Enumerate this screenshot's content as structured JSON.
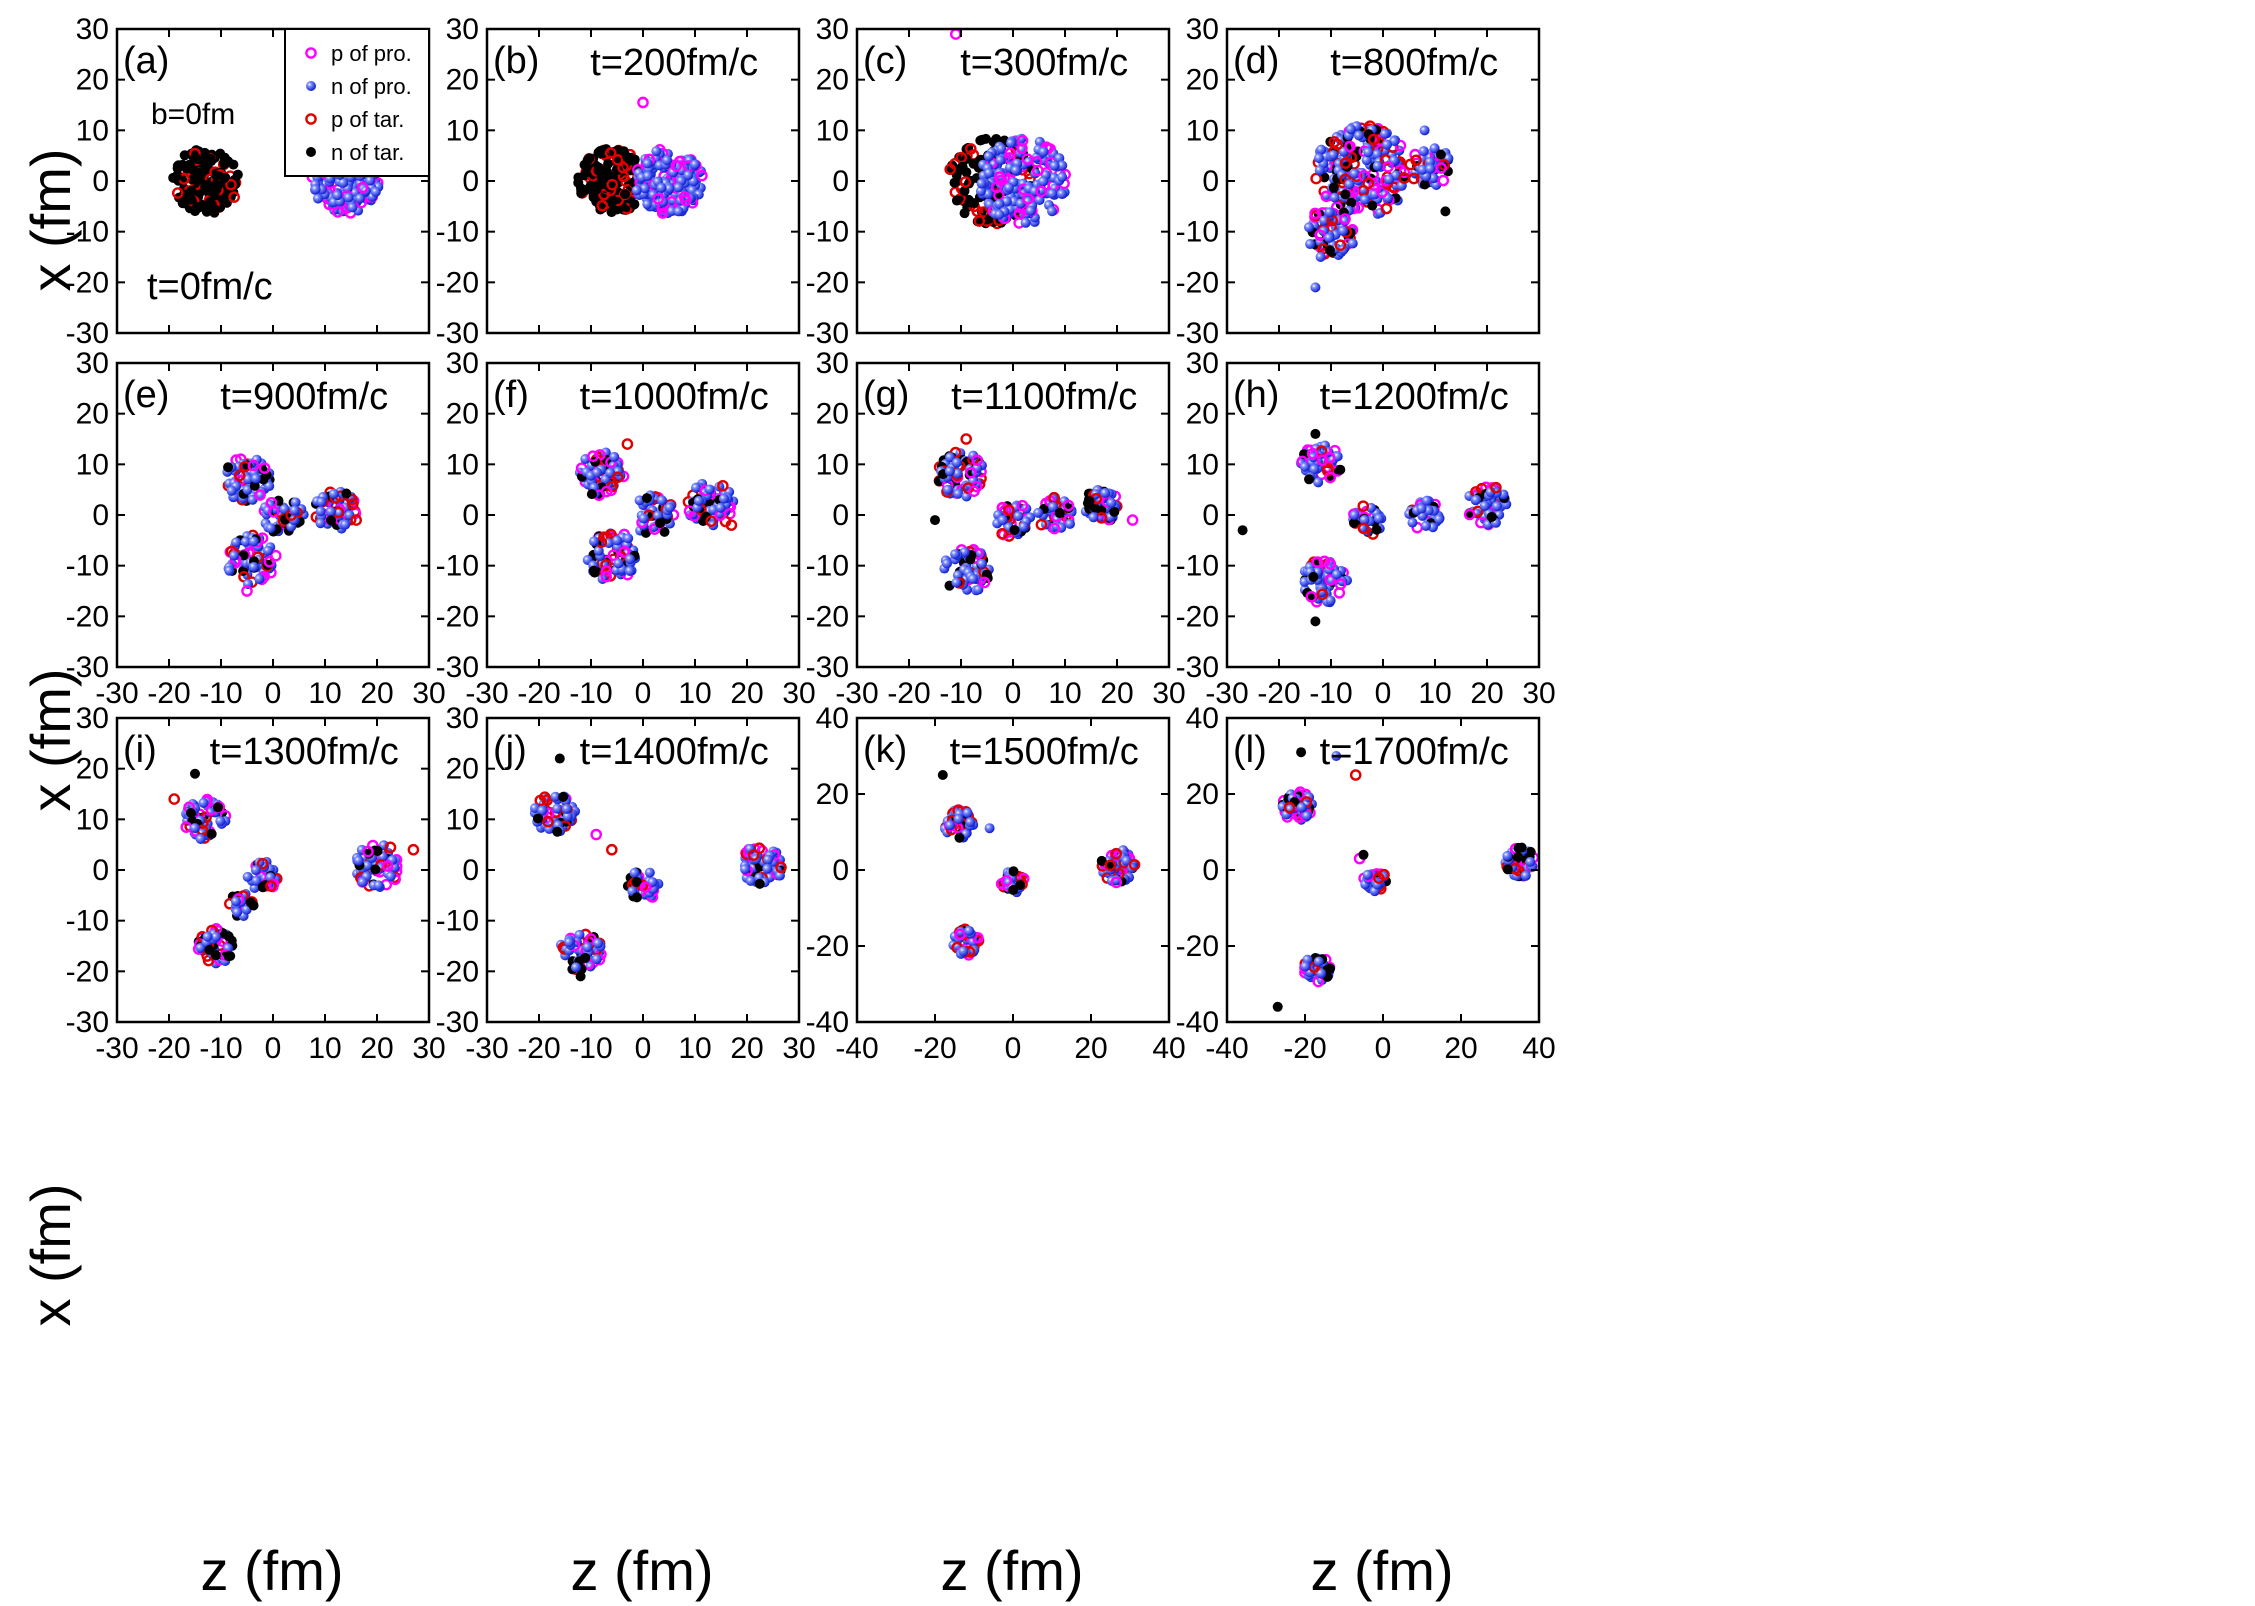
{
  "figure": {
    "y_axis_label": "x (fm)",
    "x_axis_label": "z (fm)"
  },
  "legend": {
    "panel": "a",
    "items": [
      {
        "label": "p of pro.",
        "marker": "open-circle",
        "color": "#ff00ff"
      },
      {
        "label": "n of pro.",
        "marker": "filled-sphere",
        "color": "#2030e0"
      },
      {
        "label": "p of tar.",
        "marker": "open-circle",
        "color": "#e00000"
      },
      {
        "label": "n of tar.",
        "marker": "filled-circle",
        "color": "#000000"
      }
    ]
  },
  "colors": {
    "p_pro": "#ff00ff",
    "n_pro": "#2030e0",
    "p_tar": "#e00000",
    "n_tar": "#000000"
  },
  "chart_data": [
    {
      "type": "scatter",
      "panel": "(a)",
      "time_label": "t=0fm/c",
      "extra_label": "b=0fm",
      "xlim": [
        -30,
        30
      ],
      "ylim": [
        -30,
        30
      ],
      "xticks": [
        -30,
        -20,
        -10,
        0,
        10,
        20,
        30
      ],
      "yticks": [
        -30,
        -20,
        -10,
        0,
        10,
        20,
        30
      ],
      "clusters": [
        {
          "z": -13,
          "x": 0,
          "r": 6.5,
          "species": "target",
          "n": 180
        },
        {
          "z": 14,
          "x": 0,
          "r": 6.5,
          "species": "projectile",
          "n": 180
        }
      ],
      "strays": []
    },
    {
      "type": "scatter",
      "panel": "(b)",
      "time_label": "t=200fm/c",
      "xlim": [
        -30,
        30
      ],
      "ylim": [
        -30,
        30
      ],
      "xticks": [
        -30,
        -20,
        -10,
        0,
        10,
        20,
        30
      ],
      "yticks": [
        -30,
        -20,
        -10,
        0,
        10,
        20,
        30
      ],
      "clusters": [
        {
          "z": -6,
          "x": 0,
          "r": 6.5,
          "species": "target",
          "n": 170
        },
        {
          "z": 5,
          "x": 0,
          "r": 6.5,
          "species": "projectile",
          "n": 170
        }
      ],
      "strays": [
        {
          "z": 0,
          "x": 15.5,
          "s": "p_pro"
        }
      ]
    },
    {
      "type": "scatter",
      "panel": "(c)",
      "time_label": "t=300fm/c",
      "xlim": [
        -30,
        30
      ],
      "ylim": [
        -30,
        30
      ],
      "xticks": [
        -30,
        -20,
        -10,
        0,
        10,
        20,
        30
      ],
      "yticks": [
        -30,
        -20,
        -10,
        0,
        10,
        20,
        30
      ],
      "clusters": [
        {
          "z": -4,
          "x": 0,
          "r": 8.5,
          "species": "target",
          "n": 160
        },
        {
          "z": 2,
          "x": 0,
          "r": 8.5,
          "species": "projectile",
          "n": 180
        }
      ],
      "strays": [
        {
          "z": -11,
          "x": 29,
          "s": "p_pro"
        },
        {
          "z": 8,
          "x": 3,
          "s": "n_pro"
        }
      ]
    },
    {
      "type": "scatter",
      "panel": "(d)",
      "time_label": "t=800fm/c",
      "xlim": [
        -30,
        30
      ],
      "ylim": [
        -30,
        30
      ],
      "xticks": [
        -30,
        -20,
        -10,
        0,
        10,
        20,
        30
      ],
      "yticks": [
        -30,
        -20,
        -10,
        0,
        10,
        20,
        30
      ],
      "clusters": [
        {
          "z": -4,
          "x": 2,
          "r": 9,
          "species": "mixed",
          "n": 220
        },
        {
          "z": 9,
          "x": 3,
          "r": 4,
          "species": "mixed",
          "n": 60
        },
        {
          "z": -10,
          "x": -10,
          "r": 5,
          "species": "mixed",
          "n": 70
        }
      ],
      "strays": [
        {
          "z": -13,
          "x": -21,
          "s": "n_pro"
        },
        {
          "z": 12,
          "x": -6,
          "s": "n_tar"
        },
        {
          "z": 8,
          "x": 10,
          "s": "n_pro"
        },
        {
          "z": -12,
          "x": -15,
          "s": "n_pro"
        }
      ]
    },
    {
      "type": "scatter",
      "panel": "(e)",
      "time_label": "t=900fm/c",
      "xlim": [
        -30,
        30
      ],
      "ylim": [
        -30,
        30
      ],
      "xticks": [
        -30,
        -20,
        -10,
        0,
        10,
        20,
        30
      ],
      "yticks": [
        -30,
        -20,
        -10,
        0,
        10,
        20,
        30
      ],
      "clusters": [
        {
          "z": -5,
          "x": 7,
          "r": 4.5,
          "species": "mixed",
          "n": 70
        },
        {
          "z": -4,
          "x": -9,
          "r": 5,
          "species": "mixed",
          "n": 70
        },
        {
          "z": 2,
          "x": 0,
          "r": 4,
          "species": "mixed",
          "n": 50
        },
        {
          "z": 12,
          "x": 1,
          "r": 4,
          "species": "mixed",
          "n": 60
        }
      ],
      "strays": [
        {
          "z": -5,
          "x": -15,
          "s": "p_pro"
        },
        {
          "z": 16,
          "x": -1,
          "s": "p_tar"
        }
      ]
    },
    {
      "type": "scatter",
      "panel": "(f)",
      "time_label": "t=1000fm/c",
      "xlim": [
        -30,
        30
      ],
      "ylim": [
        -30,
        30
      ],
      "xticks": [
        -30,
        -20,
        -10,
        0,
        10,
        20,
        30
      ],
      "yticks": [
        -30,
        -20,
        -10,
        0,
        10,
        20,
        30
      ],
      "clusters": [
        {
          "z": -8,
          "x": 8,
          "r": 4.5,
          "species": "mixed",
          "n": 70
        },
        {
          "z": -6,
          "x": -8,
          "r": 5,
          "species": "mixed",
          "n": 80
        },
        {
          "z": 2,
          "x": 0,
          "r": 4,
          "species": "mixed",
          "n": 50
        },
        {
          "z": 13,
          "x": 2,
          "r": 4.5,
          "species": "mixed",
          "n": 70
        }
      ],
      "strays": [
        {
          "z": -3,
          "x": 14,
          "s": "p_tar"
        },
        {
          "z": 17,
          "x": -2,
          "s": "p_tar"
        }
      ]
    },
    {
      "type": "scatter",
      "panel": "(g)",
      "time_label": "t=1100fm/c",
      "xlim": [
        -30,
        30
      ],
      "ylim": [
        -30,
        30
      ],
      "xticks": [
        -30,
        -20,
        -10,
        0,
        10,
        20,
        30
      ],
      "yticks": [
        -30,
        -20,
        -10,
        0,
        10,
        20,
        30
      ],
      "clusters": [
        {
          "z": -10,
          "x": 8,
          "r": 4.5,
          "species": "mixed",
          "n": 70
        },
        {
          "z": -9,
          "x": -11,
          "r": 4.5,
          "species": "mixed",
          "n": 70
        },
        {
          "z": 0,
          "x": -1,
          "r": 3.5,
          "species": "mixed",
          "n": 40
        },
        {
          "z": 8,
          "x": 0,
          "r": 3.5,
          "species": "mixed",
          "n": 40
        },
        {
          "z": 17,
          "x": 2,
          "r": 3.5,
          "species": "mixed",
          "n": 50
        }
      ],
      "strays": [
        {
          "z": -15,
          "x": -1,
          "s": "n_tar"
        },
        {
          "z": 23,
          "x": -1,
          "s": "p_pro"
        },
        {
          "z": -9,
          "x": 15,
          "s": "p_tar"
        }
      ]
    },
    {
      "type": "scatter",
      "panel": "(h)",
      "time_label": "t=1200fm/c",
      "xlim": [
        -30,
        30
      ],
      "ylim": [
        -30,
        30
      ],
      "xticks": [
        -30,
        -20,
        -10,
        0,
        10,
        20,
        30
      ],
      "yticks": [
        -30,
        -20,
        -10,
        0,
        10,
        20,
        30
      ],
      "clusters": [
        {
          "z": -12,
          "x": 10,
          "r": 4,
          "species": "mixed",
          "n": 60
        },
        {
          "z": -11,
          "x": -13,
          "r": 4.5,
          "species": "mixed",
          "n": 70
        },
        {
          "z": -3,
          "x": -1,
          "r": 3,
          "species": "mixed",
          "n": 35
        },
        {
          "z": 8,
          "x": 0,
          "r": 3,
          "species": "mixed",
          "n": 35
        },
        {
          "z": 20,
          "x": 2,
          "r": 4,
          "species": "mixed",
          "n": 55
        }
      ],
      "strays": [
        {
          "z": -27,
          "x": -3,
          "s": "n_tar"
        },
        {
          "z": -13,
          "x": -21,
          "s": "n_tar"
        },
        {
          "z": -13,
          "x": 16,
          "s": "n_tar"
        }
      ]
    },
    {
      "type": "scatter",
      "panel": "(i)",
      "time_label": "t=1300fm/c",
      "xlim": [
        -30,
        30
      ],
      "ylim": [
        -30,
        30
      ],
      "xticks": [
        -30,
        -20,
        -10,
        0,
        10,
        20,
        30
      ],
      "yticks": [
        -30,
        -20,
        -10,
        0,
        10,
        20,
        30
      ],
      "clusters": [
        {
          "z": -13,
          "x": 10,
          "r": 4,
          "species": "mixed",
          "n": 60
        },
        {
          "z": -11,
          "x": -15,
          "r": 3.5,
          "species": "mixed",
          "n": 50
        },
        {
          "z": -2,
          "x": -1,
          "r": 3,
          "species": "mixed",
          "n": 30
        },
        {
          "z": -6,
          "x": -7,
          "r": 2.5,
          "species": "mixed",
          "n": 20
        },
        {
          "z": 20,
          "x": 1,
          "r": 4.5,
          "species": "mixed",
          "n": 70
        }
      ],
      "strays": [
        {
          "z": -15,
          "x": 19,
          "s": "n_tar"
        },
        {
          "z": 27,
          "x": 4,
          "s": "p_tar"
        },
        {
          "z": -19,
          "x": 14,
          "s": "p_tar"
        }
      ]
    },
    {
      "type": "scatter",
      "panel": "(j)",
      "time_label": "t=1400fm/c",
      "xlim": [
        -30,
        30
      ],
      "ylim": [
        -30,
        30
      ],
      "xticks": [
        -30,
        -20,
        -10,
        0,
        10,
        20,
        30
      ],
      "yticks": [
        -30,
        -20,
        -10,
        0,
        10,
        20,
        30
      ],
      "clusters": [
        {
          "z": -17,
          "x": 11,
          "r": 4,
          "species": "mixed",
          "n": 60
        },
        {
          "z": -12,
          "x": -16,
          "r": 4,
          "species": "mixed",
          "n": 55
        },
        {
          "z": 0,
          "x": -3,
          "r": 3,
          "species": "mixed",
          "n": 40
        },
        {
          "z": 23,
          "x": 1,
          "r": 4,
          "species": "mixed",
          "n": 60
        }
      ],
      "strays": [
        {
          "z": -16,
          "x": 22,
          "s": "n_tar"
        },
        {
          "z": -6,
          "x": 4,
          "s": "p_tar"
        },
        {
          "z": -9,
          "x": 7,
          "s": "p_pro"
        },
        {
          "z": -12,
          "x": -21,
          "s": "n_tar"
        }
      ]
    },
    {
      "type": "scatter",
      "panel": "(k)",
      "time_label": "t=1500fm/c",
      "xlim": [
        -40,
        40
      ],
      "ylim": [
        -40,
        40
      ],
      "xticks": [
        -40,
        -20,
        0,
        20,
        40
      ],
      "yticks": [
        -40,
        -20,
        0,
        20,
        40
      ],
      "clusters": [
        {
          "z": -14,
          "x": 12,
          "r": 4,
          "species": "mixed",
          "n": 55
        },
        {
          "z": -12,
          "x": -19,
          "r": 3.5,
          "species": "mixed",
          "n": 45
        },
        {
          "z": 0,
          "x": -3,
          "r": 3,
          "species": "mixed",
          "n": 35
        },
        {
          "z": 27,
          "x": 1,
          "r": 4.5,
          "species": "mixed",
          "n": 65
        }
      ],
      "strays": [
        {
          "z": -18,
          "x": 25,
          "s": "n_tar"
        },
        {
          "z": -6,
          "x": 11,
          "s": "n_pro"
        }
      ]
    },
    {
      "type": "scatter",
      "panel": "(l)",
      "time_label": "t=1700fm/c",
      "xlim": [
        -40,
        40
      ],
      "ylim": [
        -40,
        40
      ],
      "xticks": [
        -40,
        -20,
        0,
        20,
        40
      ],
      "yticks": [
        -40,
        -20,
        0,
        20,
        40
      ],
      "clusters": [
        {
          "z": -22,
          "x": 17,
          "r": 4,
          "species": "mixed",
          "n": 55
        },
        {
          "z": -17,
          "x": -26,
          "r": 3.5,
          "species": "mixed",
          "n": 45
        },
        {
          "z": -2,
          "x": -3,
          "r": 3,
          "species": "mixed",
          "n": 35
        },
        {
          "z": 35,
          "x": 2,
          "r": 4,
          "species": "mixed",
          "n": 60
        }
      ],
      "strays": [
        {
          "z": -27,
          "x": -36,
          "s": "n_tar"
        },
        {
          "z": -21,
          "x": 31,
          "s": "n_tar"
        },
        {
          "z": -7,
          "x": 25,
          "s": "p_tar"
        },
        {
          "z": -12,
          "x": 30,
          "s": "n_pro"
        },
        {
          "z": -6,
          "x": 3,
          "s": "p_pro"
        },
        {
          "z": -5,
          "x": 4,
          "s": "n_tar"
        }
      ]
    }
  ]
}
